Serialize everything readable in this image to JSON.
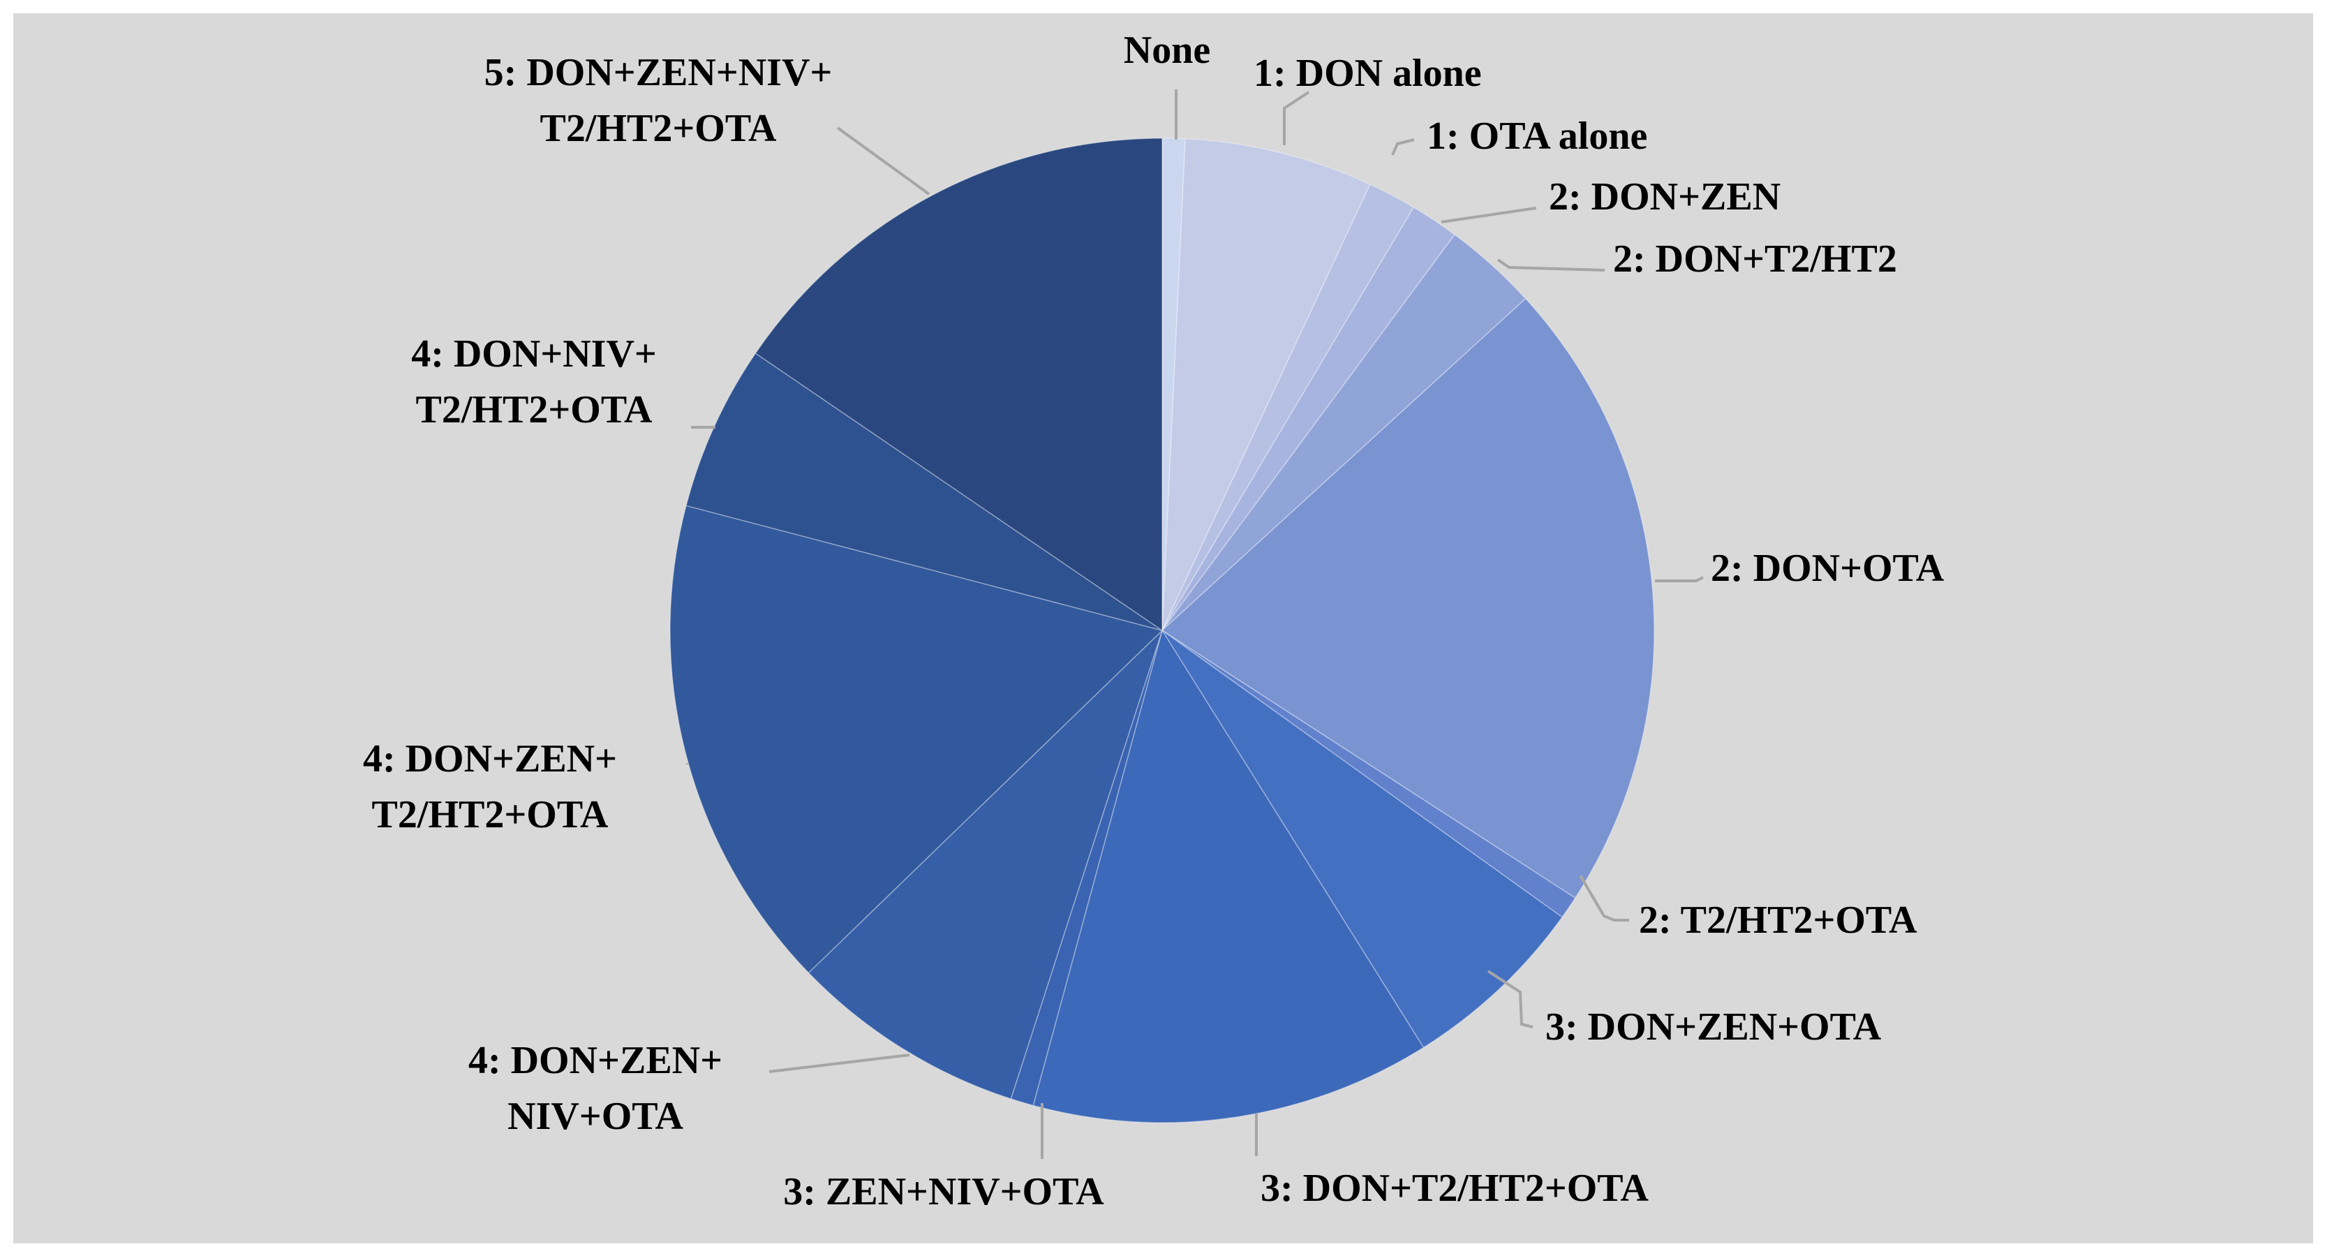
{
  "chart_data": {
    "type": "pie",
    "title": "",
    "slices": [
      {
        "label": "None",
        "value": 0.8,
        "color": "#cbd7ef"
      },
      {
        "label": "1: DON alone",
        "value": 6.6,
        "color": "#c3cbe7"
      },
      {
        "label": "1: OTA alone",
        "value": 1.7,
        "color": "#b5c0e3"
      },
      {
        "label": "2: DON+ZEN",
        "value": 1.7,
        "color": "#a7b4df"
      },
      {
        "label": "2: DON+T2/HT2",
        "value": 3.3,
        "color": "#91a4d8"
      },
      {
        "label": "2: DON+OTA",
        "value": 22.3,
        "color": "#7a93d1"
      },
      {
        "label": "2: T2/HT2+OTA",
        "value": 0.8,
        "color": "#6181cc"
      },
      {
        "label": "3: DON+ZEN+OTA",
        "value": 6.6,
        "color": "#4470c2"
      },
      {
        "label": "3: DON+T2/HT2+OTA",
        "value": 14.0,
        "color": "#3d69ba"
      },
      {
        "label": "3: ZEN+NIV+OTA",
        "value": 0.8,
        "color": "#3a63b1"
      },
      {
        "label": "4: DON+ZEN+NIV+OTA",
        "value": 8.3,
        "color": "#365fa8"
      },
      {
        "label": "4: DON+ZEN+T2/HT2+OTA",
        "value": 17.4,
        "color": "#32599c"
      },
      {
        "label": "4: DON+NIV+T2/HT2+OTA",
        "value": 5.8,
        "color": "#2e5190"
      },
      {
        "label": "5: DON+ZEN+NIV+T2/HT2+OTA",
        "value": 16.5,
        "color": "#2a487f"
      }
    ],
    "label_lines": [
      [
        "None"
      ],
      [
        "1: DON alone"
      ],
      [
        "1: OTA alone"
      ],
      [
        "2: DON+ZEN"
      ],
      [
        "2: DON+T2/HT2"
      ],
      [
        "2: DON+OTA"
      ],
      [
        "2: T2/HT2+OTA"
      ],
      [
        "3: DON+ZEN+OTA"
      ],
      [
        "3: DON+T2/HT2+OTA"
      ],
      [
        "3: ZEN+NIV+OTA"
      ],
      [
        "4: DON+ZEN+",
        "NIV+OTA"
      ],
      [
        "4: DON+ZEN+",
        "T2/HT2+OTA"
      ],
      [
        "4: DON+NIV+",
        "T2/HT2+OTA"
      ],
      [
        "5: DON+ZEN+NIV+",
        "T2/HT2+OTA"
      ]
    ],
    "background_color": "#d9d9d9",
    "legend": "none"
  }
}
